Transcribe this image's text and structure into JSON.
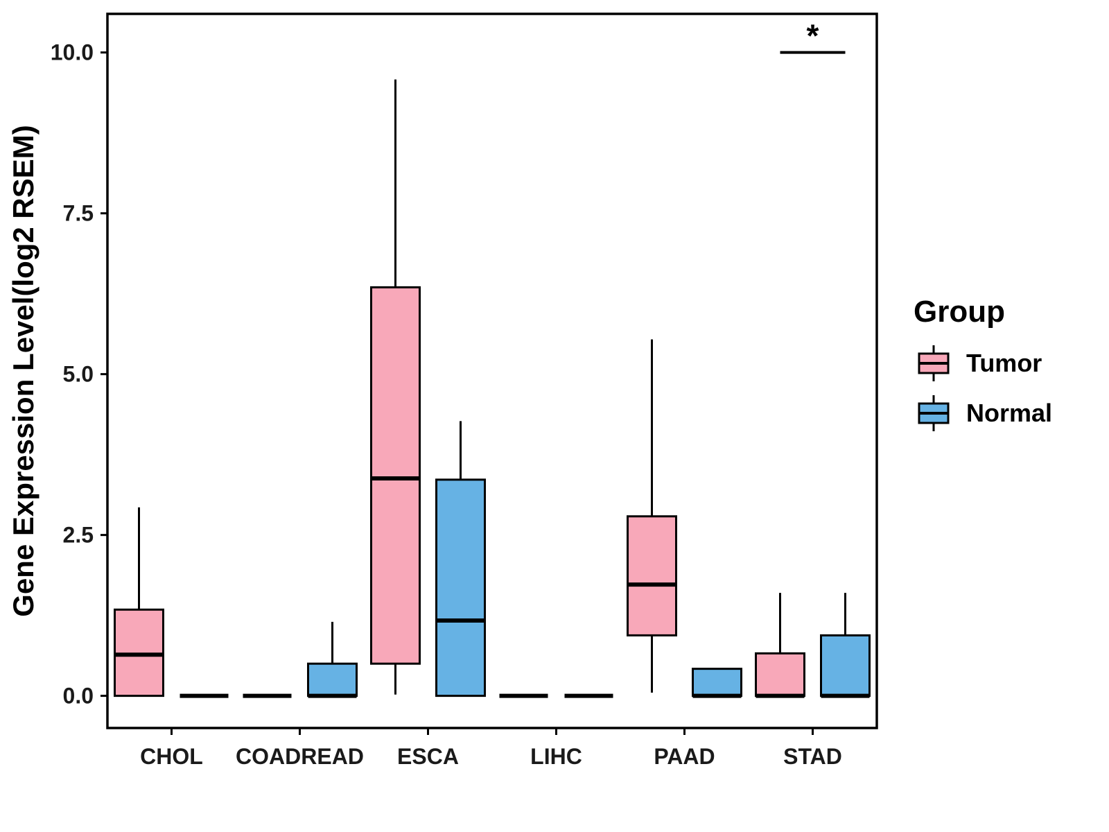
{
  "chart_data": {
    "type": "boxplot",
    "title": "",
    "xlabel": "",
    "ylabel": "Gene Expression Level(log2 RSEM)",
    "ylim": [
      -0.5,
      10.6
    ],
    "yticks": [
      0.0,
      2.5,
      5.0,
      7.5,
      10.0
    ],
    "ytick_labels": [
      "0.0",
      "2.5",
      "5.0",
      "7.5",
      "10.0"
    ],
    "categories": [
      "CHOL",
      "COADREAD",
      "ESCA",
      "LIHC",
      "PAAD",
      "STAD"
    ],
    "grid": false,
    "series": [
      {
        "name": "Tumor",
        "color": "#F8A8B9",
        "boxes": [
          {
            "min": 0,
            "q1": 0,
            "median": 0.64,
            "q3": 1.34,
            "max": 2.93
          },
          {
            "min": 0,
            "q1": 0,
            "median": 0,
            "q3": 0,
            "max": 0
          },
          {
            "min": 0.02,
            "q1": 0.5,
            "median": 3.38,
            "q3": 6.35,
            "max": 9.58
          },
          {
            "min": 0,
            "q1": 0,
            "median": 0,
            "q3": 0,
            "max": 0
          },
          {
            "min": 0.05,
            "q1": 0.94,
            "median": 1.73,
            "q3": 2.79,
            "max": 5.54
          },
          {
            "min": 0,
            "q1": 0,
            "median": 0,
            "q3": 0.66,
            "max": 1.6
          }
        ]
      },
      {
        "name": "Normal",
        "color": "#66B2E4",
        "boxes": [
          {
            "min": 0,
            "q1": 0,
            "median": 0,
            "q3": 0,
            "max": 0
          },
          {
            "min": 0,
            "q1": 0,
            "median": 0,
            "q3": 0.5,
            "max": 1.15
          },
          {
            "min": 0,
            "q1": 0,
            "median": 1.17,
            "q3": 3.36,
            "max": 4.27
          },
          {
            "min": 0,
            "q1": 0,
            "median": 0,
            "q3": 0,
            "max": 0
          },
          {
            "min": 0,
            "q1": 0,
            "median": 0,
            "q3": 0.42,
            "max": 0.42
          },
          {
            "min": 0,
            "q1": 0,
            "median": 0,
            "q3": 0.94,
            "max": 1.6
          }
        ]
      }
    ],
    "legend": {
      "title": "Group",
      "position": "right",
      "entries": [
        {
          "label": "Tumor",
          "color": "#F8A8B9"
        },
        {
          "label": "Normal",
          "color": "#66B2E4"
        }
      ]
    },
    "significance": [
      {
        "category": "STAD",
        "label": "*",
        "y": 10.0
      }
    ]
  }
}
